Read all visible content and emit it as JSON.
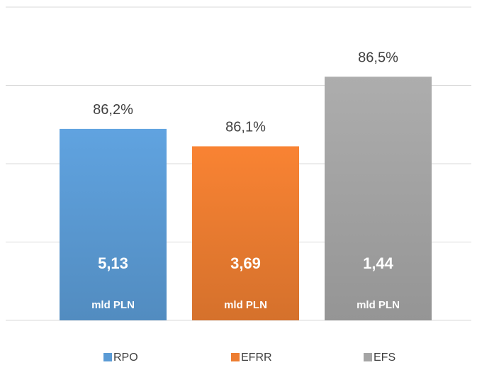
{
  "chart_data": {
    "type": "bar",
    "categories": [
      null
    ],
    "series": [
      {
        "name": "RPO",
        "color": "#5B9BD5",
        "values": [
          86.2
        ],
        "value_labels": [
          "86,2%"
        ],
        "amount_labels": [
          "5,13"
        ],
        "unit_label": "mld PLN"
      },
      {
        "name": "EFRR",
        "color": "#ED7D31",
        "values": [
          86.1
        ],
        "value_labels": [
          "86,1%"
        ],
        "amount_labels": [
          "3,69"
        ],
        "unit_label": "mld PLN"
      },
      {
        "name": "EFS",
        "color": "#A5A5A5",
        "values": [
          86.5
        ],
        "value_labels": [
          "86,5%"
        ],
        "amount_labels": [
          "1,44"
        ],
        "unit_label": "mld PLN"
      }
    ],
    "ylim": [
      85.1,
      86.9
    ],
    "yticks": [
      85.1,
      85.55,
      86,
      86.45,
      86.9
    ],
    "grid": true,
    "legend": "bottom"
  }
}
